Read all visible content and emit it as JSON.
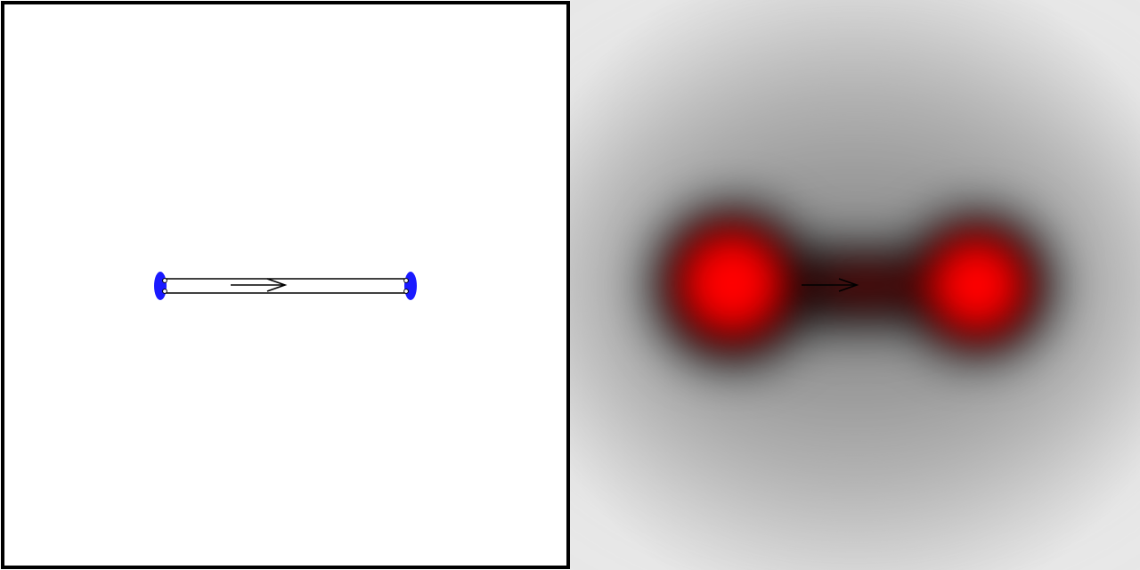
{
  "colors": {
    "canvas_background": "#ffffff",
    "frame": "#000000",
    "electrode": "#1a1aff",
    "filament_outline": "#000000",
    "arrow": "#000000",
    "field_peak": "#ff0000",
    "field_mid": "#000000",
    "field_far": "#e4e4e4"
  },
  "panels": {
    "left": {
      "kind": "schematic",
      "has_frame": true
    },
    "right": {
      "kind": "intensity-map",
      "lobes": 2,
      "arrow_direction": "right"
    }
  },
  "icons": {
    "direction_arrow": "right-arrow-icon",
    "electrode_cap": "ellipse-cap-icon"
  }
}
